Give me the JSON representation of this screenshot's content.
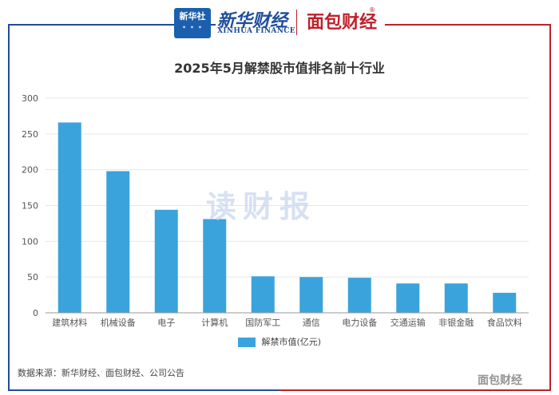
{
  "header": {
    "logo_text": "新华社",
    "brand_cn": "新华财经",
    "brand_en": "XINHUA FINANCE",
    "brand2": "面包财经",
    "brand2_mark": "®"
  },
  "watermark": "读财报",
  "chart_data": {
    "type": "bar",
    "title": "2025年5月解禁股市值排名前十行业",
    "categories": [
      "建筑材料",
      "机械设备",
      "电子",
      "计算机",
      "国防军工",
      "通信",
      "电力设备",
      "交通运输",
      "非银金融",
      "食品饮料"
    ],
    "series": [
      {
        "name": "解禁市值(亿元)",
        "values": [
          266,
          198,
          144,
          131,
          51,
          50,
          49,
          41,
          41,
          28
        ],
        "color": "#3aa3dc"
      }
    ],
    "yticks": [
      0,
      50,
      100,
      150,
      200,
      250,
      300
    ],
    "ylim": [
      0,
      300
    ],
    "grid": true,
    "legend_position": "bottom"
  },
  "footer": {
    "source": "数据来源：新华财经、面包财经、公司公告",
    "weibo_mark": "面包财经"
  }
}
